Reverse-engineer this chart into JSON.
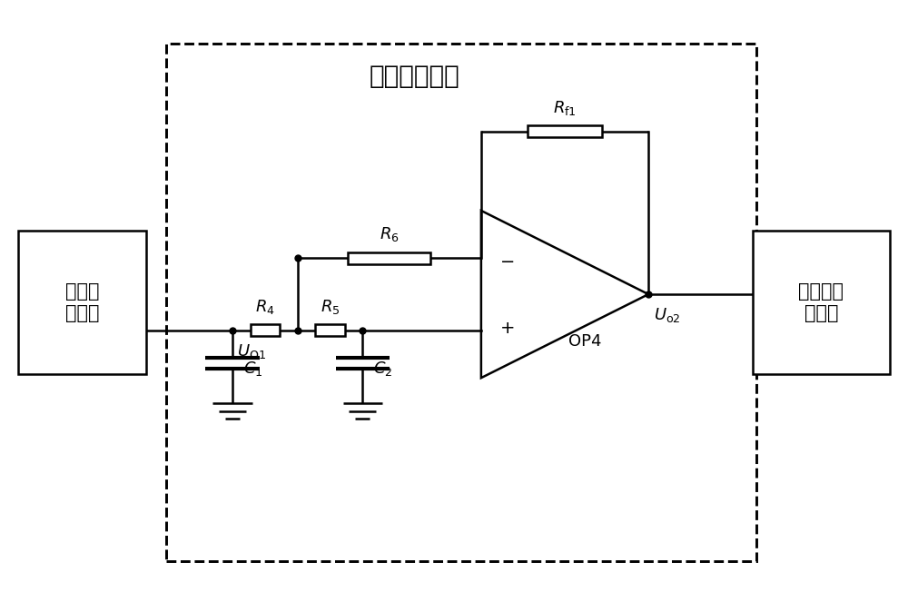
{
  "bg_color": "#ffffff",
  "line_color": "#000000",
  "box_left_label": "前置放\n大电路",
  "box_right_label": "偏置及保\n护电路",
  "dashed_box_title": "低通滤波电路",
  "op_label": "OP4",
  "lw": 1.8
}
